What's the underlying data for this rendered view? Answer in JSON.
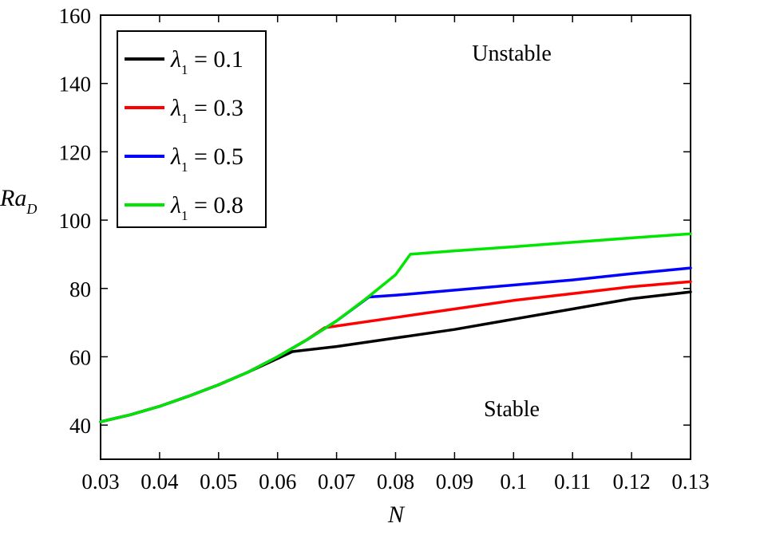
{
  "chart_data": {
    "type": "line",
    "xlabel": "N",
    "ylabel_main": "Ra",
    "ylabel_sub": "D",
    "xlim": [
      0.03,
      0.13
    ],
    "ylim": [
      30,
      160
    ],
    "x_ticks": [
      "0.03",
      "0.04",
      "0.05",
      "0.06",
      "0.07",
      "0.08",
      "0.09",
      "0.1",
      "0.11",
      "0.12",
      "0.13"
    ],
    "y_ticks": [
      "40",
      "60",
      "80",
      "100",
      "120",
      "140",
      "160"
    ],
    "legend_position": "top-left",
    "annotations": {
      "upper": "Unstable",
      "lower": "Stable"
    },
    "series": [
      {
        "name": "λ1 = 0.1",
        "legend_symbol": "λ",
        "legend_sub": "1",
        "legend_value": " = 0.1",
        "color": "#000000",
        "x": [
          0.03,
          0.035,
          0.04,
          0.045,
          0.05,
          0.055,
          0.06,
          0.0625,
          0.07,
          0.08,
          0.09,
          0.1,
          0.11,
          0.12,
          0.13
        ],
        "y": [
          41,
          43,
          45.5,
          48.5,
          51.8,
          55.5,
          59.5,
          61.5,
          63,
          65.5,
          68,
          71,
          74,
          77,
          79
        ]
      },
      {
        "name": "λ1 = 0.3",
        "legend_symbol": "λ",
        "legend_sub": "1",
        "legend_value": " = 0.3",
        "color": "#ff0000",
        "x": [
          0.03,
          0.035,
          0.04,
          0.045,
          0.05,
          0.055,
          0.06,
          0.065,
          0.068,
          0.07,
          0.08,
          0.09,
          0.1,
          0.11,
          0.12,
          0.13
        ],
        "y": [
          41,
          43,
          45.5,
          48.5,
          51.8,
          55.5,
          60,
          65,
          68.5,
          69,
          71.5,
          74,
          76.5,
          78.5,
          80.5,
          82
        ]
      },
      {
        "name": "λ1 = 0.5",
        "legend_symbol": "λ",
        "legend_sub": "1",
        "legend_value": " = 0.5",
        "color": "#0000ff",
        "x": [
          0.03,
          0.035,
          0.04,
          0.045,
          0.05,
          0.055,
          0.06,
          0.065,
          0.07,
          0.0755,
          0.08,
          0.09,
          0.1,
          0.11,
          0.12,
          0.13
        ],
        "y": [
          41,
          43,
          45.5,
          48.5,
          51.8,
          55.5,
          60,
          65,
          70.5,
          77.5,
          78,
          79.5,
          81,
          82.5,
          84.3,
          86
        ]
      },
      {
        "name": "λ1 = 0.8",
        "legend_symbol": "λ",
        "legend_sub": "1",
        "legend_value": " = 0.8",
        "color": "#00e600",
        "x": [
          0.03,
          0.035,
          0.04,
          0.045,
          0.05,
          0.055,
          0.06,
          0.065,
          0.07,
          0.075,
          0.08,
          0.0825,
          0.09,
          0.1,
          0.11,
          0.12,
          0.13
        ],
        "y": [
          41,
          43,
          45.5,
          48.5,
          51.8,
          55.5,
          60,
          65,
          70.5,
          77,
          84,
          90,
          91,
          92.2,
          93.5,
          94.8,
          96
        ]
      }
    ]
  }
}
